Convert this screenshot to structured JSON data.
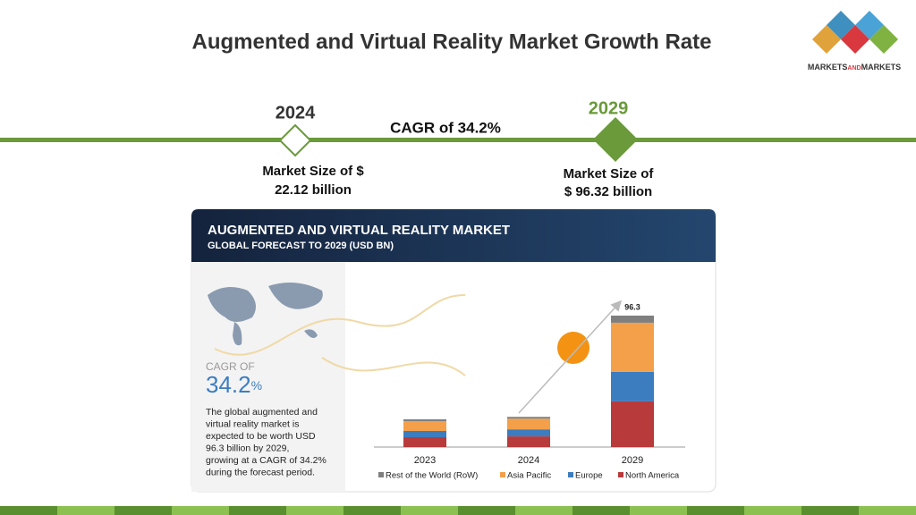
{
  "title": "Augmented and Virtual Reality Market Growth Rate",
  "logo": {
    "parts": [
      "MARKETS",
      "AND",
      "MARKETS"
    ]
  },
  "timeline": {
    "start_year": "2024",
    "end_year": "2029",
    "cagr": "CAGR of 34.2%",
    "start_size": [
      "Market Size of $",
      "22.12 billion"
    ],
    "end_size": [
      "Market Size of",
      "$ 96.32 billion"
    ]
  },
  "panel": {
    "cagr_label": "CAGR OF",
    "cagr_value": "34.2",
    "cagr_unit": "%",
    "description": [
      "The global augmented and",
      "virtual reality market is",
      "expected to be worth USD",
      "96.3 billion by 2029,",
      "growing at a CAGR of 34.2%",
      "during the forecast period."
    ]
  },
  "chart_data": {
    "type": "stacked_bar",
    "title": "AUGMENTED AND VIRTUAL REALITY MARKET",
    "subtitle": "GLOBAL FORECAST TO 2029 (USD BN)",
    "categories": [
      "2023",
      "2024",
      "2029"
    ],
    "series": [
      {
        "name": "North America",
        "color": "#b83a3a",
        "values": [
          7.2,
          7.8,
          33.5
        ]
      },
      {
        "name": "Europe",
        "color": "#3c7dc0",
        "values": [
          4.6,
          5.2,
          21.6
        ]
      },
      {
        "name": "Asia Pacific",
        "color": "#f4a04a",
        "values": [
          7.2,
          7.8,
          36.0
        ]
      },
      {
        "name": "Rest of the World (RoW)",
        "color": "#7f7f7f",
        "values": [
          1.3,
          1.3,
          5.2
        ]
      }
    ],
    "total_label": "96.3"
  }
}
